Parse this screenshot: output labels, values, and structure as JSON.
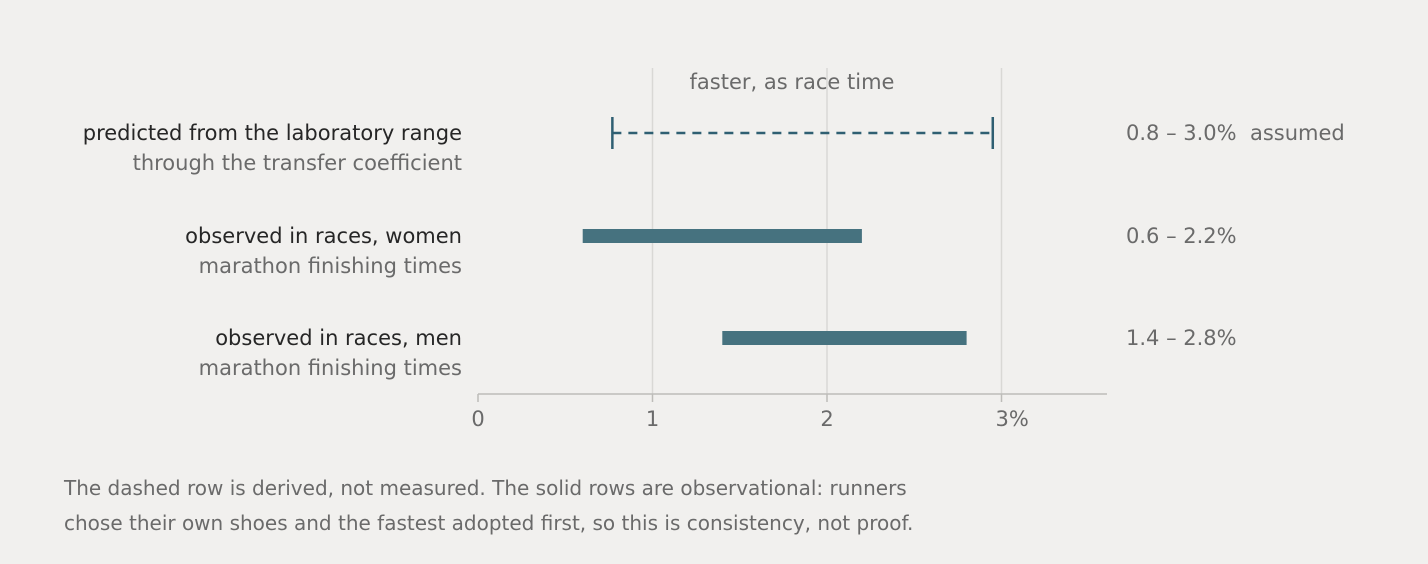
{
  "chart_data": {
    "type": "range",
    "axis_title": "faster, as race time",
    "xlim": [
      0,
      3.6
    ],
    "ticks": [
      {
        "value": 0,
        "label": "0"
      },
      {
        "value": 1,
        "label": "1"
      },
      {
        "value": 2,
        "label": "2"
      },
      {
        "value": 3,
        "label": "3%"
      }
    ],
    "grid": true,
    "rows": [
      {
        "title": "predicted from the laboratory range",
        "subtitle": "through the transfer coefficient",
        "low": 0.77,
        "high": 2.95,
        "style": "dashed",
        "range_label": "0.8 – 3.0%  assumed"
      },
      {
        "title": "observed in races, women",
        "subtitle": "marathon finishing times",
        "low": 0.6,
        "high": 2.2,
        "style": "solid",
        "range_label": "0.6 – 2.2%"
      },
      {
        "title": "observed in races, men",
        "subtitle": "marathon finishing times",
        "low": 1.4,
        "high": 2.8,
        "style": "solid",
        "range_label": "1.4 – 2.8%"
      }
    ],
    "colors": {
      "bar": "#46727f",
      "dashed": "#2f5f72",
      "grid": "#d9d8d5",
      "axis": "#bdbcb9"
    }
  },
  "note": {
    "line1": "The dashed row is derived, not measured. The solid rows are observational: runners",
    "line2": "chose their own shoes and the fastest adopted first, so this is consistency, not proof."
  }
}
